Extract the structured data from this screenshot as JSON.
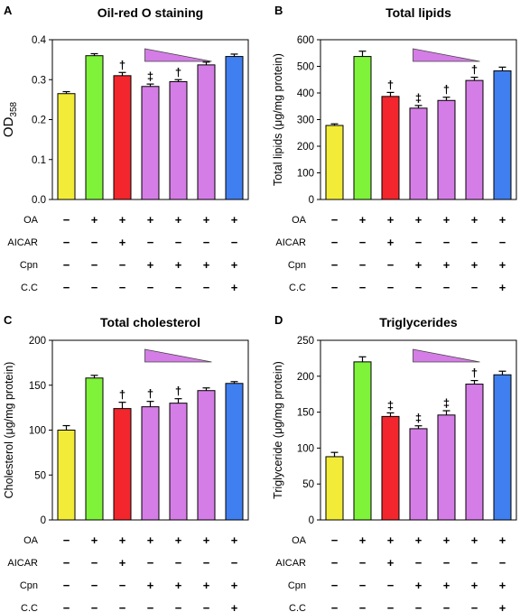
{
  "figure": {
    "treatments": [
      "OA",
      "AICAR",
      "Cpn",
      "C.C"
    ],
    "bar_colors": [
      "#f2ec38",
      "#7ff23a",
      "#f2262c",
      "#d57de6",
      "#d57de6",
      "#d57de6",
      "#3f7ff0"
    ],
    "gradient_color": "#d57de6"
  },
  "chart_data": [
    {
      "type": "bar",
      "panel": "A",
      "title": "Oil-red O staining",
      "ylabel": "OD",
      "ylabel_sub": "358",
      "ylim": [
        0,
        0.4
      ],
      "yticks": [
        "0.0",
        "0.1",
        "0.2",
        "0.3",
        "0.4"
      ],
      "values": [
        0.265,
        0.36,
        0.31,
        0.283,
        0.295,
        0.337,
        0.358
      ],
      "errors": [
        0.005,
        0.005,
        0.008,
        0.006,
        0.005,
        0.007,
        0.006
      ],
      "significance": [
        "",
        "",
        "†",
        "‡",
        "†",
        "",
        ""
      ],
      "treatment_rows": [
        [
          "−",
          "+",
          "+",
          "+",
          "+",
          "+",
          "+"
        ],
        [
          "−",
          "−",
          "+",
          "−",
          "−",
          "−",
          "−"
        ],
        [
          "−",
          "−",
          "−",
          "+",
          "+",
          "+",
          "+"
        ],
        [
          "−",
          "−",
          "−",
          "−",
          "−",
          "−",
          "+"
        ]
      ]
    },
    {
      "type": "bar",
      "panel": "B",
      "title": "Total lipids",
      "ylabel": "Total lipids (μg/mg protein)",
      "ylim": [
        0,
        600
      ],
      "yticks": [
        "0",
        "100",
        "200",
        "300",
        "400",
        "500",
        "600"
      ],
      "values": [
        278,
        537,
        387,
        343,
        372,
        447,
        483
      ],
      "errors": [
        6,
        20,
        15,
        10,
        12,
        12,
        14
      ],
      "significance": [
        "",
        "",
        "†",
        "‡",
        "†",
        "†",
        ""
      ],
      "treatment_rows": [
        [
          "−",
          "+",
          "+",
          "+",
          "+",
          "+",
          "+"
        ],
        [
          "−",
          "−",
          "+",
          "−",
          "−",
          "−",
          "−"
        ],
        [
          "−",
          "−",
          "−",
          "+",
          "+",
          "+",
          "+"
        ],
        [
          "−",
          "−",
          "−",
          "−",
          "−",
          "−",
          "+"
        ]
      ]
    },
    {
      "type": "bar",
      "panel": "C",
      "title": "Total cholesterol",
      "ylabel": "Cholesterol (μg/mg protein)",
      "ylim": [
        0,
        200
      ],
      "yticks": [
        "0",
        "50",
        "100",
        "150",
        "200"
      ],
      "values": [
        100,
        158,
        124,
        126,
        130,
        144,
        152
      ],
      "errors": [
        5,
        3,
        7,
        6,
        5,
        3,
        2
      ],
      "significance": [
        "",
        "",
        "†",
        "†",
        "†",
        "",
        ""
      ],
      "treatment_rows": [
        [
          "−",
          "+",
          "+",
          "+",
          "+",
          "+",
          "+"
        ],
        [
          "−",
          "−",
          "+",
          "−",
          "−",
          "−",
          "−"
        ],
        [
          "−",
          "−",
          "−",
          "+",
          "+",
          "+",
          "+"
        ],
        [
          "−",
          "−",
          "−",
          "−",
          "−",
          "−",
          "+"
        ]
      ]
    },
    {
      "type": "bar",
      "panel": "D",
      "title": "Triglycerides",
      "ylabel": "Triglyceride (μg/mg protein)",
      "ylim": [
        0,
        250
      ],
      "yticks": [
        "0",
        "50",
        "100",
        "150",
        "200",
        "250"
      ],
      "values": [
        88,
        220,
        144,
        127,
        146,
        189,
        202
      ],
      "errors": [
        6,
        7,
        5,
        4,
        6,
        5,
        5
      ],
      "significance": [
        "",
        "",
        "‡",
        "‡",
        "‡",
        "†",
        ""
      ],
      "treatment_rows": [
        [
          "−",
          "+",
          "+",
          "+",
          "+",
          "+",
          "+"
        ],
        [
          "−",
          "−",
          "+",
          "−",
          "−",
          "−",
          "−"
        ],
        [
          "−",
          "−",
          "−",
          "+",
          "+",
          "+",
          "+"
        ],
        [
          "−",
          "−",
          "−",
          "−",
          "−",
          "−",
          "+"
        ]
      ]
    }
  ]
}
